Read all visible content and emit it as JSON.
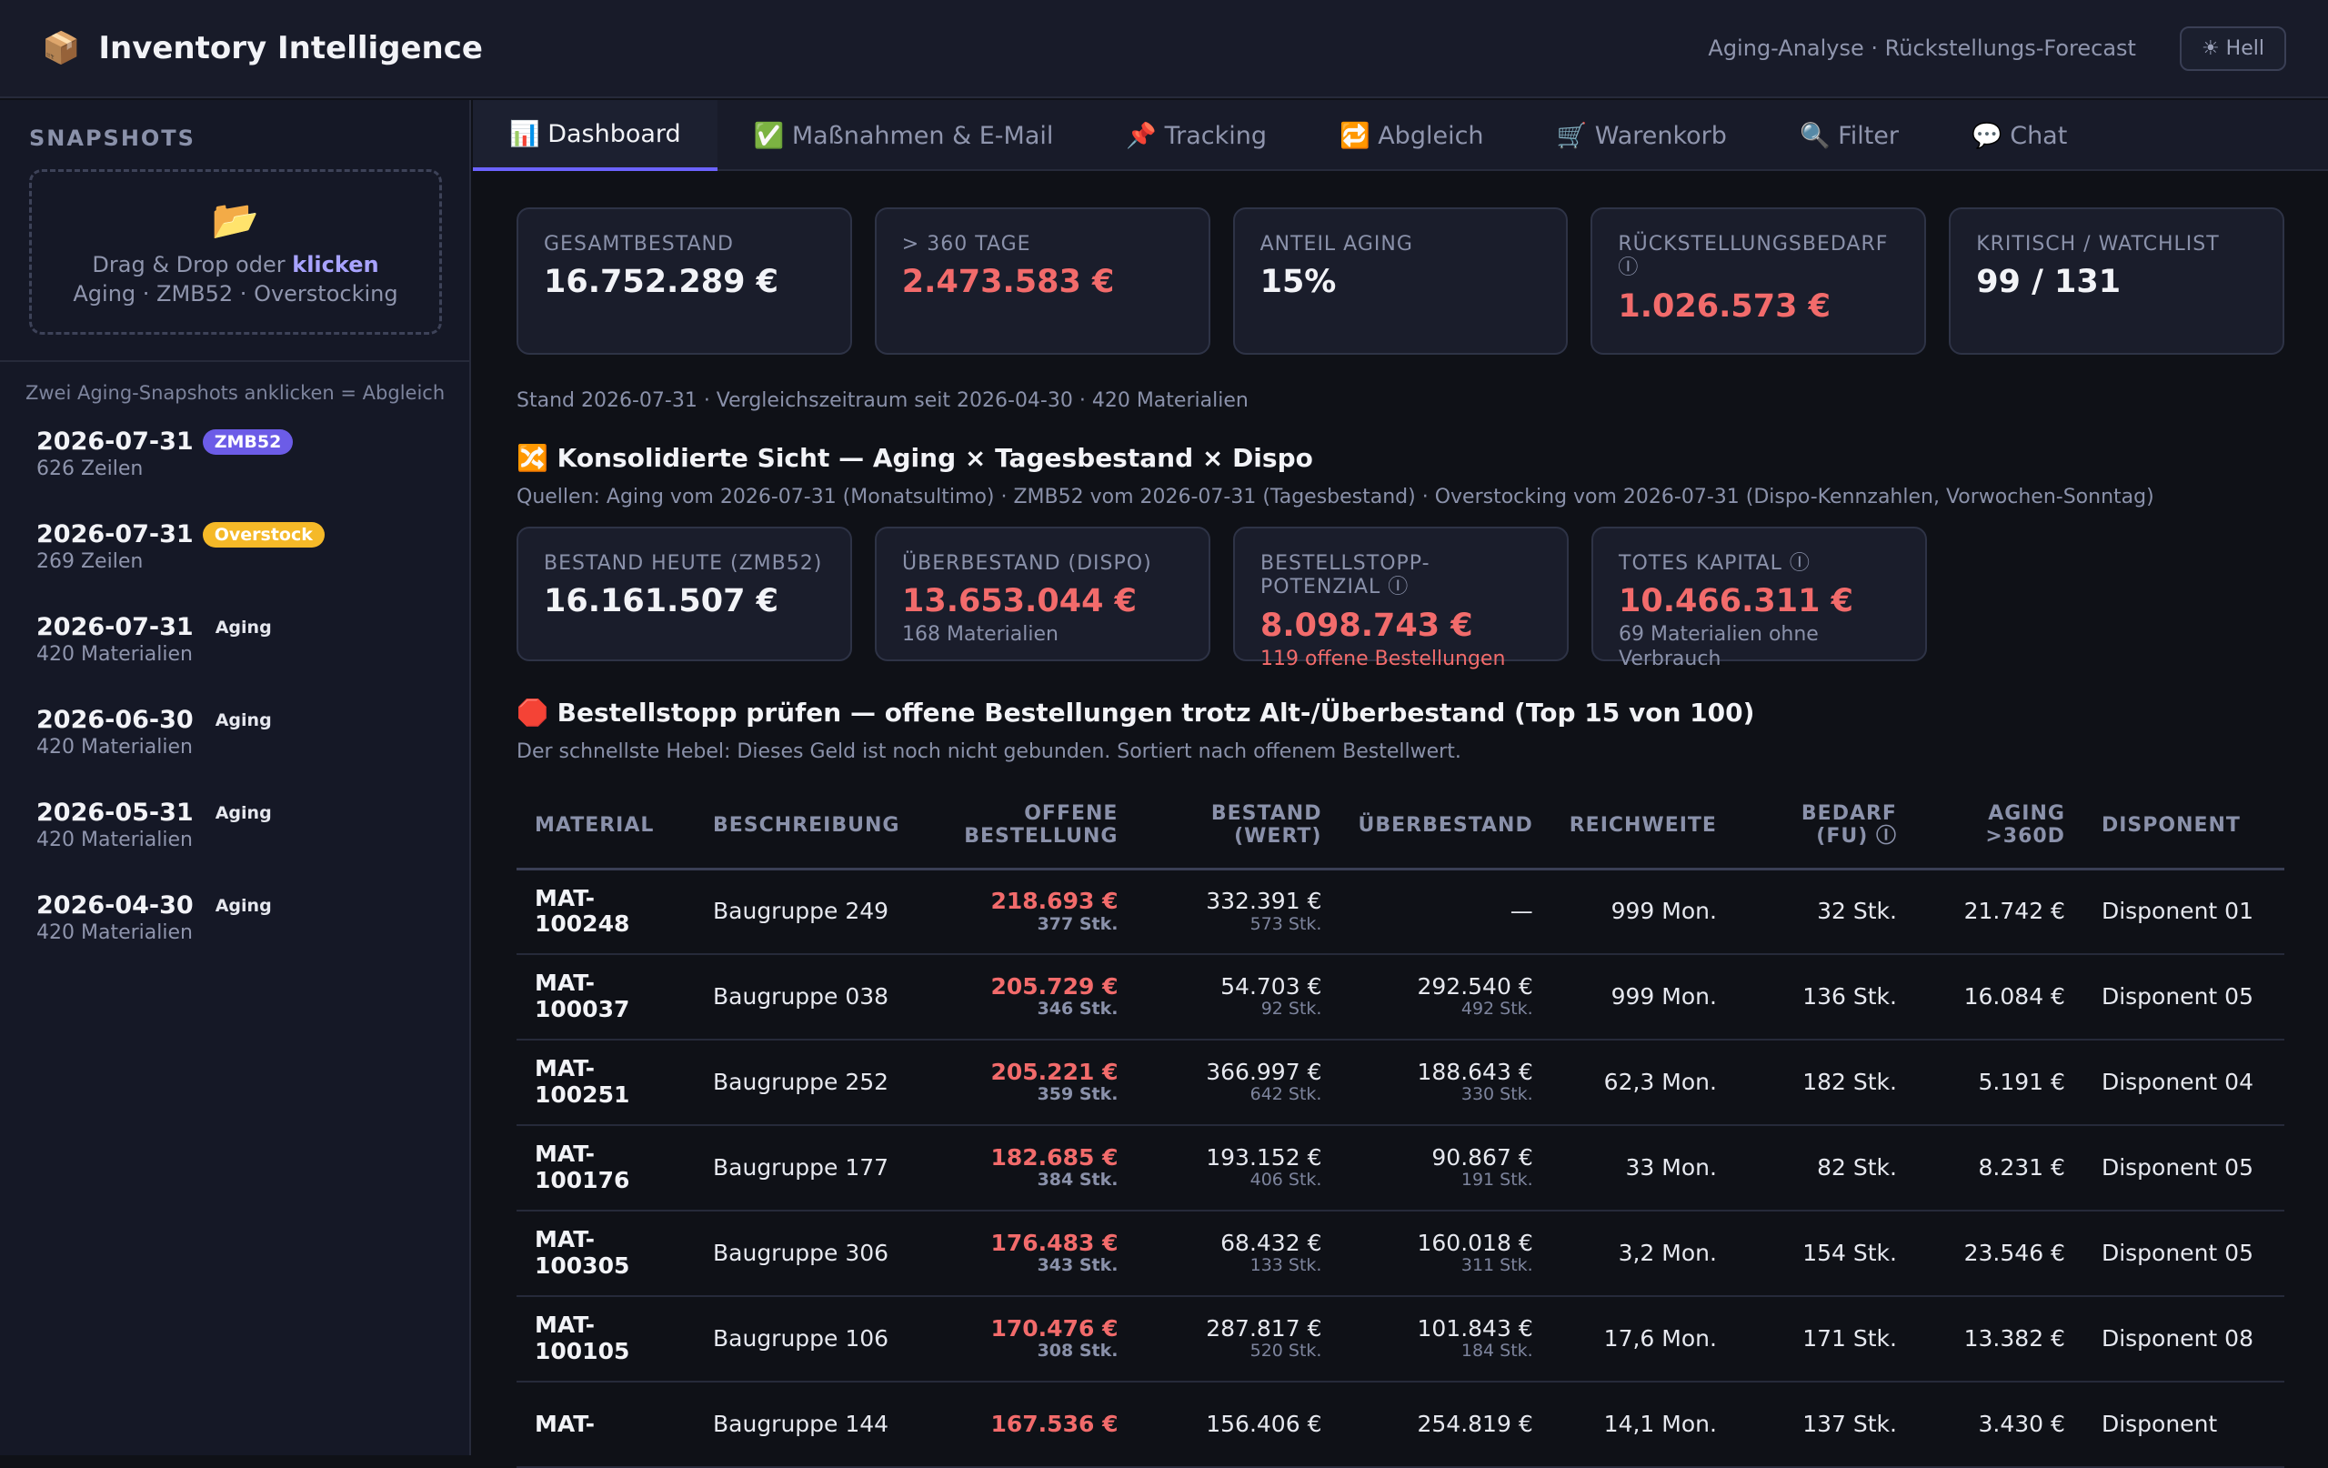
{
  "app": {
    "logo_icon": "📦",
    "title": "Inventory Intelligence",
    "subtitle": "Aging-Analyse · Rückstellungs-Forecast",
    "theme_button": "☀ Hell"
  },
  "sidebar": {
    "title": "SNAPSHOTS",
    "dropzone": {
      "icon": "📂",
      "line1_prefix": "Drag & Drop oder ",
      "line1_link": "klicken",
      "line2": "Aging · ZMB52 · Overstocking"
    },
    "hint": "Zwei Aging-Snapshots anklicken = Abgleich",
    "snapshots": [
      {
        "date": "2026-07-31",
        "badge": "ZMB52",
        "sub": "626 Zeilen"
      },
      {
        "date": "2026-07-31",
        "badge": "Overstock",
        "sub": "269 Zeilen"
      },
      {
        "date": "2026-07-31",
        "badge": "Aging",
        "sub": "420 Materialien"
      },
      {
        "date": "2026-06-30",
        "badge": "Aging",
        "sub": "420 Materialien"
      },
      {
        "date": "2026-05-31",
        "badge": "Aging",
        "sub": "420 Materialien"
      },
      {
        "date": "2026-04-30",
        "badge": "Aging",
        "sub": "420 Materialien"
      }
    ]
  },
  "tabs": [
    {
      "label": "📊 Dashboard",
      "active": true
    },
    {
      "label": "✅ Maßnahmen & E-Mail"
    },
    {
      "label": "📌 Tracking"
    },
    {
      "label": "🔁 Abgleich"
    },
    {
      "label": "🛒 Warenkorb"
    },
    {
      "label": "🔍 Filter"
    },
    {
      "label": "💬 Chat"
    }
  ],
  "kpis": [
    {
      "label": "Gesamtbestand",
      "value": "16.752.289 €"
    },
    {
      "label": "> 360 Tage",
      "value": "2.473.583 €"
    },
    {
      "label": "Anteil Aging",
      "value": "15%"
    },
    {
      "label": "Rückstellungsbedarf ⓘ",
      "value": "1.026.573 €"
    },
    {
      "label": "Kritisch / Watchlist",
      "value": "99 / 131"
    }
  ],
  "meta": "Stand 2026-07-31 · Vergleichszeitraum seit 2026-04-30 · 420 Materialien",
  "consolidated": {
    "title": "🔀 Konsolidierte Sicht — Aging × Tagesbestand × Dispo",
    "sources": "Quellen: Aging vom 2026-07-31 (Monatsultimo) · ZMB52 vom 2026-07-31 (Tagesbestand) · Overstocking vom 2026-07-31 (Dispo-Kennzahlen, Vorwochen-Sonntag)",
    "kpis": [
      {
        "label": "Bestand heute (ZMB52)",
        "value": "16.161.507 €",
        "note": ""
      },
      {
        "label": "Überbestand (Dispo)",
        "value": "13.653.044 €",
        "note": "168 Materialien"
      },
      {
        "label": "Bestellstopp-Potenzial ⓘ",
        "value": "8.098.743 €",
        "note": "119 offene Bestellungen"
      },
      {
        "label": "Totes Kapital ⓘ",
        "value": "10.466.311 €",
        "note": "69 Materialien ohne Verbrauch"
      }
    ]
  },
  "stop": {
    "title": "🛑 Bestellstopp prüfen — offene Bestellungen trotz Alt-/Überbestand (Top 15 von 100)",
    "sub": "Der schnellste Hebel: Dieses Geld ist noch nicht gebunden. Sortiert nach offenem Bestellwert.",
    "headers": [
      "Material",
      "Beschreibung",
      "Offene Bestellung",
      "Bestand (Wert)",
      "Überbestand",
      "Reichweite",
      "Bedarf (FU) ⓘ",
      "Aging >360d",
      "Disponent"
    ],
    "rows": [
      {
        "material": "MAT-100248",
        "beschreibung": "Baugruppe 249",
        "offen": "218.693 €",
        "offen_stk": "377 Stk.",
        "bestand": "332.391 €",
        "bestand_stk": "573 Stk.",
        "ueber": "—",
        "ueber_stk": "",
        "reichweite": "999 Mon.",
        "bedarf": "32 Stk.",
        "aging": "21.742 €",
        "disponent": "Disponent 01"
      },
      {
        "material": "MAT-100037",
        "beschreibung": "Baugruppe 038",
        "offen": "205.729 €",
        "offen_stk": "346 Stk.",
        "bestand": "54.703 €",
        "bestand_stk": "92 Stk.",
        "ueber": "292.540 €",
        "ueber_stk": "492 Stk.",
        "reichweite": "999 Mon.",
        "bedarf": "136 Stk.",
        "aging": "16.084 €",
        "disponent": "Disponent 05"
      },
      {
        "material": "MAT-100251",
        "beschreibung": "Baugruppe 252",
        "offen": "205.221 €",
        "offen_stk": "359 Stk.",
        "bestand": "366.997 €",
        "bestand_stk": "642 Stk.",
        "ueber": "188.643 €",
        "ueber_stk": "330 Stk.",
        "reichweite": "62,3 Mon.",
        "bedarf": "182 Stk.",
        "aging": "5.191 €",
        "disponent": "Disponent 04"
      },
      {
        "material": "MAT-100176",
        "beschreibung": "Baugruppe 177",
        "offen": "182.685 €",
        "offen_stk": "384 Stk.",
        "bestand": "193.152 €",
        "bestand_stk": "406 Stk.",
        "ueber": "90.867 €",
        "ueber_stk": "191 Stk.",
        "reichweite": "33 Mon.",
        "bedarf": "82 Stk.",
        "aging": "8.231 €",
        "disponent": "Disponent 05"
      },
      {
        "material": "MAT-100305",
        "beschreibung": "Baugruppe 306",
        "offen": "176.483 €",
        "offen_stk": "343 Stk.",
        "bestand": "68.432 €",
        "bestand_stk": "133 Stk.",
        "ueber": "160.018 €",
        "ueber_stk": "311 Stk.",
        "reichweite": "3,2 Mon.",
        "bedarf": "154 Stk.",
        "aging": "23.546 €",
        "disponent": "Disponent 05"
      },
      {
        "material": "MAT-100105",
        "beschreibung": "Baugruppe 106",
        "offen": "170.476 €",
        "offen_stk": "308 Stk.",
        "bestand": "287.817 €",
        "bestand_stk": "520 Stk.",
        "ueber": "101.843 €",
        "ueber_stk": "184 Stk.",
        "reichweite": "17,6 Mon.",
        "bedarf": "171 Stk.",
        "aging": "13.382 €",
        "disponent": "Disponent 08"
      },
      {
        "material": "MAT-",
        "beschreibung": "Baugruppe 144",
        "offen": "167.536 €",
        "offen_stk": "",
        "bestand": "156.406 €",
        "bestand_stk": "",
        "ueber": "254.819 €",
        "ueber_stk": "",
        "reichweite": "14,1 Mon.",
        "bedarf": "137 Stk.",
        "aging": "3.430 €",
        "disponent": "Disponent"
      }
    ]
  },
  "colors": {
    "accent": "#6c63ff",
    "danger": "#f26b6b",
    "badge_zmb52": "#6c5ce7",
    "badge_overstock": "#f5b928",
    "background": "#0f1117"
  }
}
